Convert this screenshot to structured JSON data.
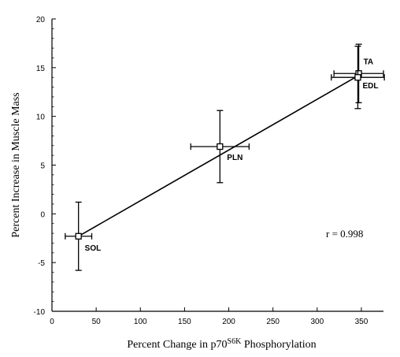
{
  "chart_data": {
    "type": "scatter",
    "xlabel": {
      "prefix": "Percent Change in p70",
      "superscript": "S6K",
      "suffix": " Phosphorylation"
    },
    "ylabel": "Percent Increase in Muscle Mass",
    "xlim": [
      0,
      375
    ],
    "ylim": [
      -10,
      20
    ],
    "xticks": [
      0,
      50,
      100,
      150,
      200,
      250,
      300,
      350
    ],
    "yticks": [
      -10,
      -5,
      0,
      5,
      10,
      15,
      20
    ],
    "points": [
      {
        "label": "SOL",
        "x": 30,
        "y": -2.3,
        "x_err": 15,
        "y_err": 3.5
      },
      {
        "label": "PLN",
        "x": 190,
        "y": 6.9,
        "x_err": 33,
        "y_err": 3.7
      },
      {
        "label": "TA",
        "x": 347,
        "y": 14.4,
        "x_err": 28,
        "y_err": 3.0
      },
      {
        "label": "EDL",
        "x": 346,
        "y": 14.0,
        "x_err": 30,
        "y_err": 3.2
      }
    ],
    "fit_line": {
      "x": [
        30,
        347
      ],
      "y": [
        -2.3,
        14.2
      ]
    },
    "annotation": "r = 0.998",
    "grid": false
  }
}
